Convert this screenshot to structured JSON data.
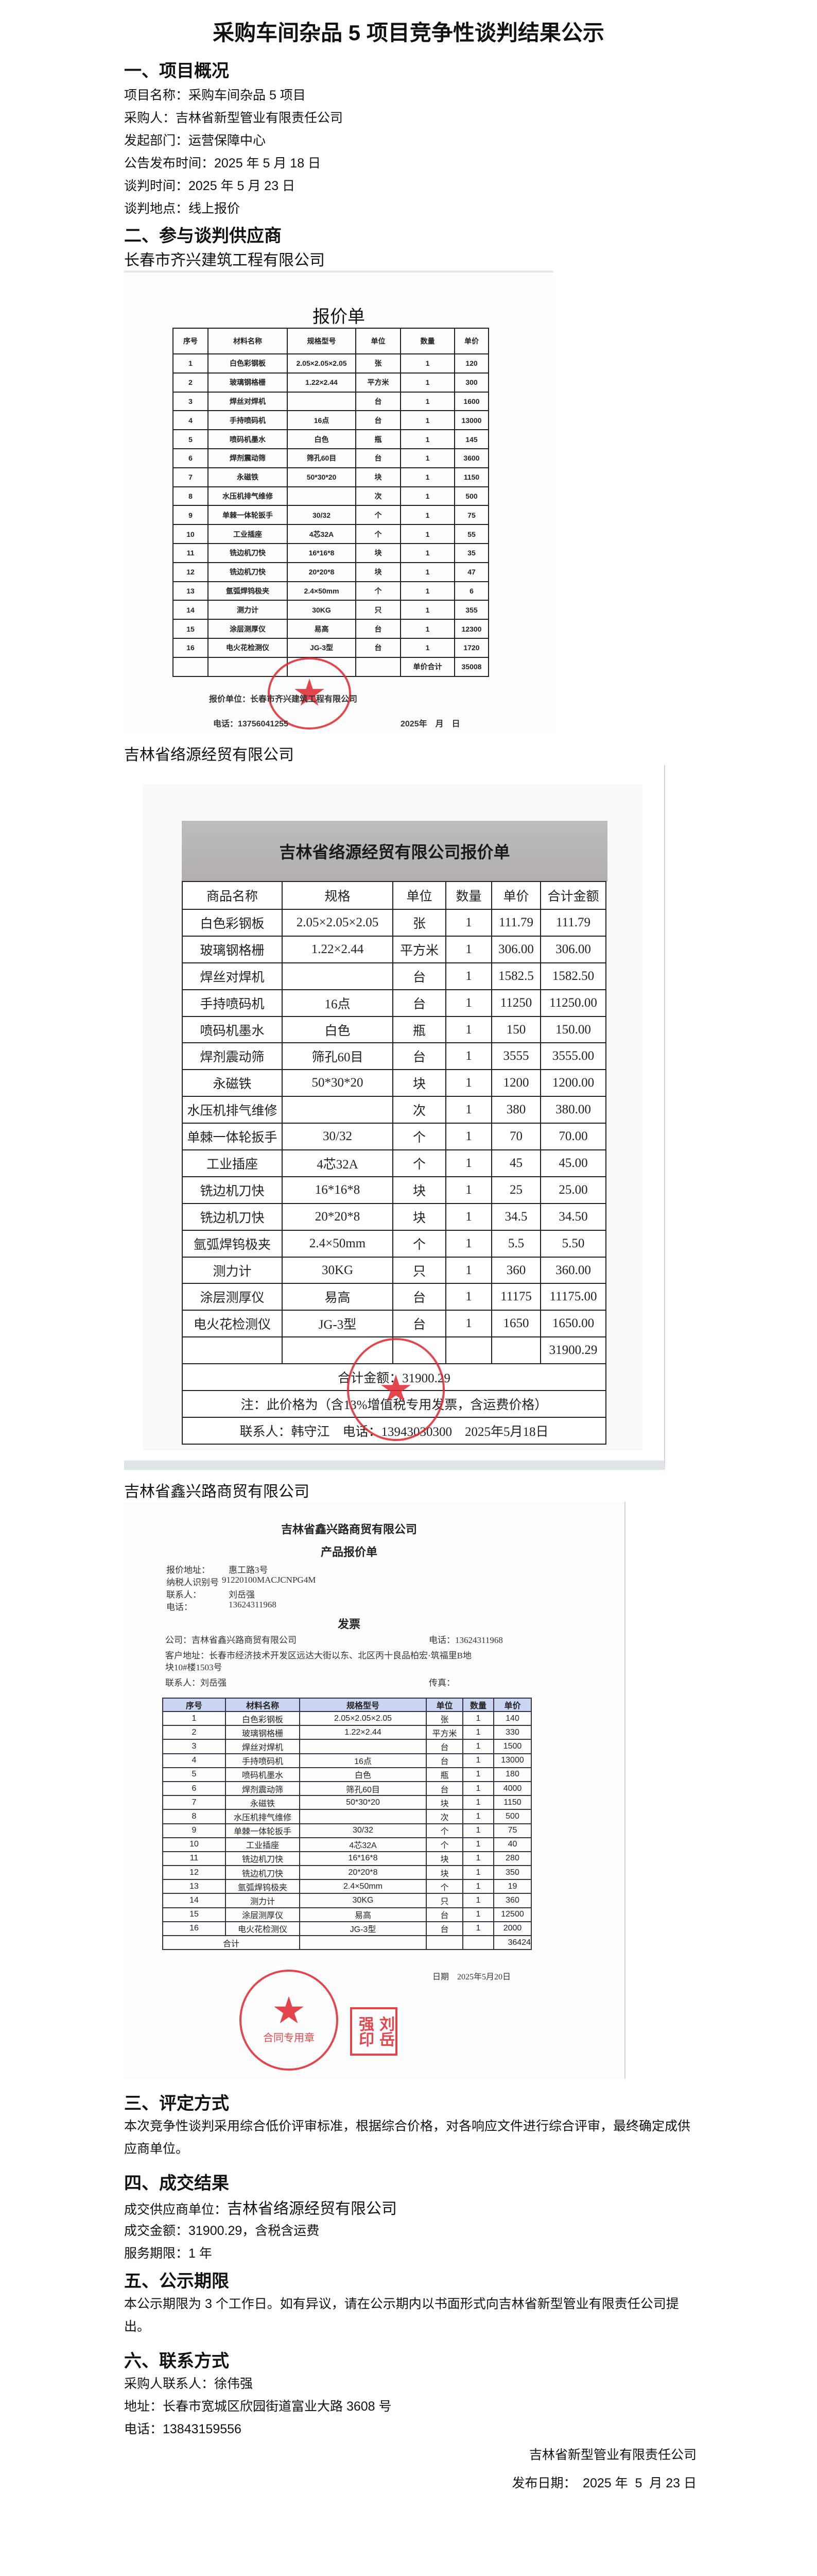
{
  "title": "采购车间杂品 5 项目竞争性谈判结果公示",
  "s1": {
    "heading": "一、项目概况",
    "lines": [
      "项目名称：采购车间杂品 5 项目",
      "采购人：吉林省新型管业有限责任公司",
      "发起部门：运营保障中心",
      "公告发布时间：2025 年 5 月 18 日",
      "谈判时间：2025 年 5 月 23 日",
      "谈判地点：线上报价"
    ]
  },
  "s2": {
    "heading": "二、参与谈判供应商",
    "supplier1": {
      "name": "长春市齐兴建筑工程有限公司",
      "doc_title": "报价单",
      "headers": [
        "序号",
        "材料名称",
        "规格型号",
        "单位",
        "数量",
        "单价"
      ],
      "rows": [
        [
          "1",
          "白色彩钢板",
          "2.05×2.05×2.05",
          "张",
          "1",
          "120"
        ],
        [
          "2",
          "玻璃钢格栅",
          "1.22×2.44",
          "平方米",
          "1",
          "300"
        ],
        [
          "3",
          "焊丝对焊机",
          "",
          "台",
          "1",
          "1600"
        ],
        [
          "4",
          "手持喷码机",
          "16点",
          "台",
          "1",
          "13000"
        ],
        [
          "5",
          "喷码机墨水",
          "白色",
          "瓶",
          "1",
          "145"
        ],
        [
          "6",
          "焊剂震动筛",
          "筛孔60目",
          "台",
          "1",
          "3600"
        ],
        [
          "7",
          "永磁铁",
          "50*30*20",
          "块",
          "1",
          "1150"
        ],
        [
          "8",
          "水压机排气维修",
          "",
          "次",
          "1",
          "500"
        ],
        [
          "9",
          "单棘一体轮扳手",
          "30/32",
          "个",
          "1",
          "75"
        ],
        [
          "10",
          "工业插座",
          "4芯32A",
          "个",
          "1",
          "55"
        ],
        [
          "11",
          "铣边机刀快",
          "16*16*8",
          "块",
          "1",
          "35"
        ],
        [
          "12",
          "铣边机刀快",
          "20*20*8",
          "块",
          "1",
          "47"
        ],
        [
          "13",
          "氩弧焊钨极夹",
          "2.4×50mm",
          "个",
          "1",
          "6"
        ],
        [
          "14",
          "测力计",
          "30KG",
          "只",
          "1",
          "355"
        ],
        [
          "15",
          "涂层测厚仪",
          "易高",
          "台",
          "1",
          "12300"
        ],
        [
          "16",
          "电火花检测仪",
          "JG-3型",
          "台",
          "1",
          "1720"
        ]
      ],
      "total_label": "单价合计",
      "total": "35008",
      "unit_line": "报价单位：长春市齐兴建筑工程有限公司",
      "phone_line": "电话：13756041255",
      "date_line": "2025年　月　日",
      "stamp_text": "长春市齐兴建筑工程有限公司"
    },
    "supplier2": {
      "name": "吉林省络源经贸有限公司",
      "doc_title": "吉林省络源经贸有限公司报价单",
      "headers": [
        "商品名称",
        "规格",
        "单位",
        "数量",
        "单价",
        "合计金额"
      ],
      "rows": [
        [
          "白色彩钢板",
          "2.05×2.05×2.05",
          "张",
          "1",
          "111.79",
          "111.79"
        ],
        [
          "玻璃钢格栅",
          "1.22×2.44",
          "平方米",
          "1",
          "306.00",
          "306.00"
        ],
        [
          "焊丝对焊机",
          "",
          "台",
          "1",
          "1582.5",
          "1582.50"
        ],
        [
          "手持喷码机",
          "16点",
          "台",
          "1",
          "11250",
          "11250.00"
        ],
        [
          "喷码机墨水",
          "白色",
          "瓶",
          "1",
          "150",
          "150.00"
        ],
        [
          "焊剂震动筛",
          "筛孔60目",
          "台",
          "1",
          "3555",
          "3555.00"
        ],
        [
          "永磁铁",
          "50*30*20",
          "块",
          "1",
          "1200",
          "1200.00"
        ],
        [
          "水压机排气维修",
          "",
          "次",
          "1",
          "380",
          "380.00"
        ],
        [
          "单棘一体轮扳手",
          "30/32",
          "个",
          "1",
          "70",
          "70.00"
        ],
        [
          "工业插座",
          "4芯32A",
          "个",
          "1",
          "45",
          "45.00"
        ],
        [
          "铣边机刀快",
          "16*16*8",
          "块",
          "1",
          "25",
          "25.00"
        ],
        [
          "铣边机刀快",
          "20*20*8",
          "块",
          "1",
          "34.5",
          "34.50"
        ],
        [
          "氩弧焊钨极夹",
          "2.4×50mm",
          "个",
          "1",
          "5.5",
          "5.50"
        ],
        [
          "测力计",
          "30KG",
          "只",
          "1",
          "360",
          "360.00"
        ],
        [
          "涂层测厚仪",
          "易高",
          "台",
          "1",
          "11175",
          "11175.00"
        ],
        [
          "电火花检测仪",
          "JG-3型",
          "台",
          "1",
          "1650",
          "1650.00"
        ]
      ],
      "subtotal": "31900.29",
      "total_line": "合计金额：31900.29",
      "note_line": "注：此价格为（含13%增值税专用发票，含运费价格）",
      "contact_line": "联系人：韩守江　电话：13943030300　2025年5月18日",
      "stamp_text": "吉林省络源经贸有限公司"
    },
    "supplier3": {
      "name": "吉林省鑫兴路商贸有限公司",
      "doc_company": "吉林省鑫兴路商贸有限公司",
      "doc_title": "产品报价单",
      "info": [
        {
          "label": "报价地址：",
          "value": "惠工路3号"
        },
        {
          "label": "纳税人识别号",
          "value": "91220100MACJCNPG4M"
        },
        {
          "label": "联系人：",
          "value": "刘岳强"
        },
        {
          "label": "电话：",
          "value": "13624311968"
        }
      ],
      "invoice_title": "发票",
      "company_line": "公司：吉林省鑫兴路商贸有限公司",
      "phone_line": "电话：13624311968",
      "address_line1": "客户地址：长春市经济技术开发区远达大街以东、北区丙十良品柏宏·筑福里B地",
      "address_line2": "块10#楼1503号",
      "contact_line": "联系人：刘岳强",
      "fax_line": "传真：",
      "headers": [
        "序号",
        "材料名称",
        "规格型号",
        "单位",
        "数量",
        "单价"
      ],
      "rows": [
        [
          "1",
          "白色彩钢板",
          "2.05×2.05×2.05",
          "张",
          "1",
          "140"
        ],
        [
          "2",
          "玻璃钢格栅",
          "1.22×2.44",
          "平方米",
          "1",
          "330"
        ],
        [
          "3",
          "焊丝对焊机",
          "",
          "台",
          "1",
          "1500"
        ],
        [
          "4",
          "手持喷码机",
          "16点",
          "台",
          "1",
          "13000"
        ],
        [
          "5",
          "喷码机墨水",
          "白色",
          "瓶",
          "1",
          "180"
        ],
        [
          "6",
          "焊剂震动筛",
          "筛孔60目",
          "台",
          "1",
          "4000"
        ],
        [
          "7",
          "永磁铁",
          "50*30*20",
          "块",
          "1",
          "1150"
        ],
        [
          "8",
          "水压机排气维修",
          "",
          "次",
          "1",
          "500"
        ],
        [
          "9",
          "单棘一体轮扳手",
          "30/32",
          "个",
          "1",
          "75"
        ],
        [
          "10",
          "工业插座",
          "4芯32A",
          "个",
          "1",
          "40"
        ],
        [
          "11",
          "铣边机刀快",
          "16*16*8",
          "块",
          "1",
          "280"
        ],
        [
          "12",
          "铣边机刀快",
          "20*20*8",
          "块",
          "1",
          "350"
        ],
        [
          "13",
          "氩弧焊钨极夹",
          "2.4×50mm",
          "个",
          "1",
          "19"
        ],
        [
          "14",
          "测力计",
          "30KG",
          "只",
          "1",
          "360"
        ],
        [
          "15",
          "涂层测厚仪",
          "易高",
          "台",
          "1",
          "12500"
        ],
        [
          "16",
          "电火花检测仪",
          "JG-3型",
          "台",
          "1",
          "2000"
        ]
      ],
      "total_label": "合计",
      "total": "36424",
      "date_line": "日期　2025年5月20日",
      "stamp_text": "吉林省鑫兴路商贸有限公司",
      "stamp_sub": "合同专用章",
      "seal_text": "刘岳强印"
    }
  },
  "s3": {
    "heading": "三、评定方式",
    "text": "本次竞争性谈判采用综合低价评审标准，根据综合价格，对各响应文件进行综合评审，最终确定成供应商单位。"
  },
  "s4": {
    "heading": "四、成交结果",
    "supplier_label": "成交供应商单位：",
    "supplier": "吉林省络源经贸有限公司",
    "amount": "成交金额：31900.29，含税含运费",
    "period": "服务期限：1 年"
  },
  "s5": {
    "heading": "五、公示期限",
    "text": "本公示期限为 3 个工作日。如有异议，请在公示期内以书面形式向吉林省新型管业有限责任公司提出。"
  },
  "s6": {
    "heading": "六、联系方式",
    "contact": "采购人联系人：徐伟强",
    "address": "地址：长春市宽城区欣园街道富业大路 3608 号",
    "phone": "电话：13843159556"
  },
  "signature": "吉林省新型管业有限责任公司",
  "publish_date": "发布日期：　2025 年  5  月 23 日",
  "colors": {
    "stamp": "#e0262e",
    "table3_header": "#c9d5f1"
  }
}
